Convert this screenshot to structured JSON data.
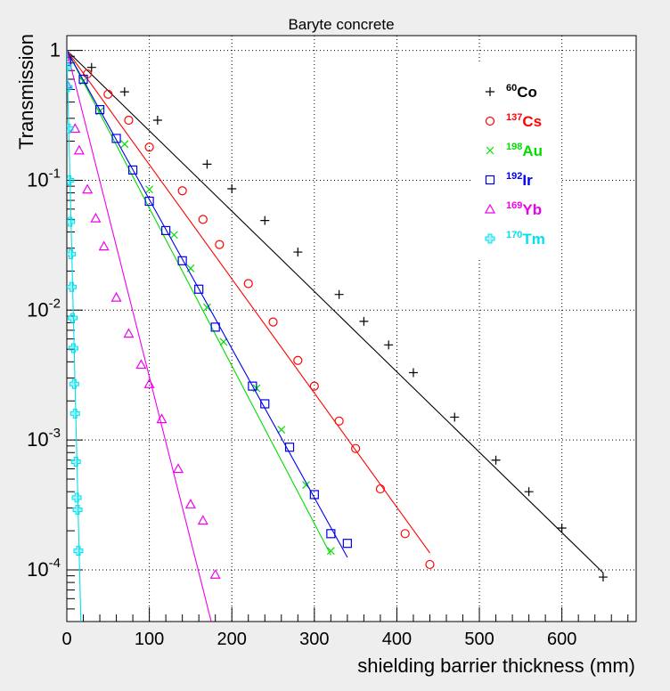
{
  "chart_data": {
    "type": "scatter",
    "title": "Baryte concrete",
    "xlabel": "shielding barrier thickness (mm)",
    "ylabel": "Transmission",
    "xlim": [
      0,
      690
    ],
    "ylim": [
      4e-05,
      1.3
    ],
    "yscale": "log",
    "grid": true,
    "legend_position": "top-right",
    "x_ticks": [
      "0",
      "100",
      "200",
      "300",
      "400",
      "500",
      "600"
    ],
    "x_tick_values": [
      0,
      100,
      200,
      300,
      400,
      500,
      600
    ],
    "y_ticks": [
      {
        "value": 1,
        "base": "1",
        "exp": ""
      },
      {
        "value": 0.1,
        "base": "10",
        "exp": "-1"
      },
      {
        "value": 0.01,
        "base": "10",
        "exp": "-2"
      },
      {
        "value": 0.001,
        "base": "10",
        "exp": "-3"
      },
      {
        "value": 0.0001,
        "base": "10",
        "exp": "-4"
      }
    ],
    "series": [
      {
        "name": "Co",
        "mass": "60",
        "color": "#000000",
        "marker": "plus",
        "fit": [
          [
            0,
            1.0
          ],
          [
            650,
            9.5e-05
          ]
        ],
        "x": [
          0,
          30,
          70,
          110,
          170,
          200,
          240,
          280,
          330,
          360,
          390,
          420,
          470,
          520,
          560,
          600,
          650
        ],
        "y": [
          0.92,
          0.74,
          0.48,
          0.29,
          0.133,
          0.086,
          0.049,
          0.028,
          0.0132,
          0.0082,
          0.0054,
          0.0033,
          0.0015,
          0.0007,
          0.0004,
          0.00021,
          8.8e-05
        ]
      },
      {
        "name": "Cs",
        "mass": "137",
        "color": "#ff0000",
        "marker": "circle",
        "fit": [
          [
            0,
            1.0
          ],
          [
            440,
            0.000135
          ]
        ],
        "x": [
          0,
          25,
          50,
          75,
          100,
          140,
          165,
          185,
          220,
          250,
          280,
          300,
          330,
          350,
          380,
          410,
          440
        ],
        "y": [
          0.9,
          0.66,
          0.46,
          0.29,
          0.18,
          0.083,
          0.05,
          0.032,
          0.016,
          0.0081,
          0.0041,
          0.0026,
          0.0014,
          0.00086,
          0.00042,
          0.00019,
          0.00011
        ]
      },
      {
        "name": "Au",
        "mass": "198",
        "color": "#00dd00",
        "marker": "cross",
        "fit": [
          [
            0,
            1.0
          ],
          [
            320,
            0.00013
          ]
        ],
        "x": [
          0,
          20,
          40,
          70,
          100,
          130,
          150,
          170,
          190,
          230,
          260,
          290,
          320
        ],
        "y": [
          0.9,
          0.58,
          0.34,
          0.19,
          0.085,
          0.038,
          0.021,
          0.0105,
          0.0057,
          0.0025,
          0.0012,
          0.00045,
          0.00014
        ]
      },
      {
        "name": "Ir",
        "mass": "192",
        "color": "#0000ee",
        "marker": "square",
        "fit": [
          [
            0,
            1.0
          ],
          [
            340,
            0.000125
          ]
        ],
        "x": [
          0,
          20,
          40,
          60,
          80,
          100,
          120,
          140,
          160,
          180,
          225,
          240,
          270,
          300,
          320,
          340
        ],
        "y": [
          0.82,
          0.6,
          0.35,
          0.21,
          0.12,
          0.069,
          0.041,
          0.024,
          0.0145,
          0.0074,
          0.0026,
          0.0019,
          0.00088,
          0.00038,
          0.00019,
          0.00016
        ]
      },
      {
        "name": "Yb",
        "mass": "169",
        "color": "#ee00ee",
        "marker": "triangle",
        "fit": [
          [
            0,
            1.0
          ],
          [
            175,
            4e-05
          ]
        ],
        "x": [
          0,
          10,
          15,
          25,
          35,
          45,
          60,
          75,
          90,
          100,
          115,
          135,
          150,
          165,
          180
        ],
        "y": [
          0.55,
          0.25,
          0.17,
          0.085,
          0.051,
          0.031,
          0.0125,
          0.0066,
          0.0038,
          0.0027,
          0.00145,
          0.0006,
          0.00032,
          0.00024,
          9.2e-05
        ]
      },
      {
        "name": "Tm",
        "mass": "170",
        "color": "#00e0ee",
        "marker": "plusfilled",
        "fit": [
          [
            0,
            1.0
          ],
          [
            17,
            4e-05
          ]
        ],
        "x": [
          0,
          1,
          2,
          3,
          4,
          5,
          6,
          7,
          8,
          9,
          10,
          11,
          12,
          13,
          14
        ],
        "y": [
          0.75,
          0.52,
          0.25,
          0.1,
          0.048,
          0.027,
          0.0151,
          0.0087,
          0.0051,
          0.0027,
          0.0016,
          0.00068,
          0.00036,
          0.00029,
          0.00014
        ]
      }
    ]
  }
}
